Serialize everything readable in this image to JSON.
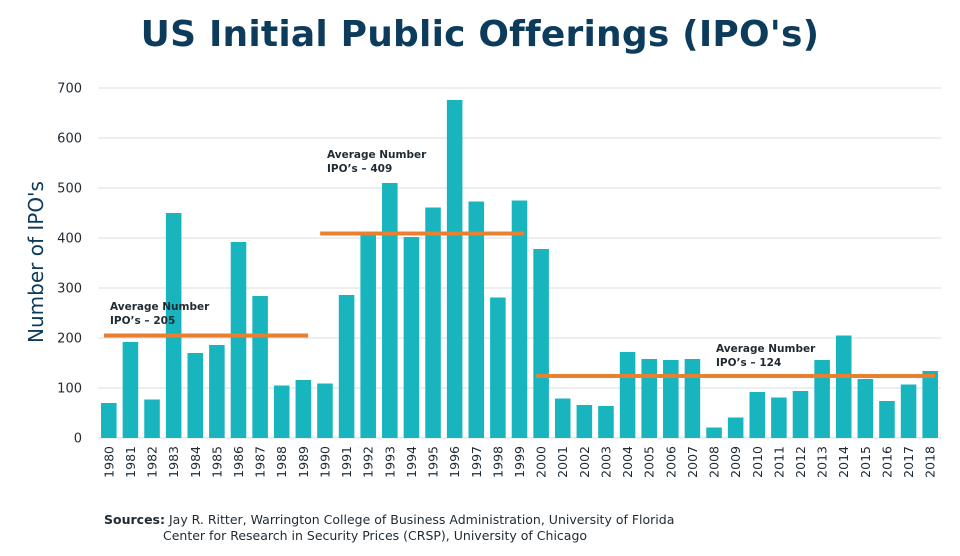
{
  "chart_data": {
    "type": "bar",
    "title": "US Initial Public Offerings (IPO's)",
    "ylabel": "Number of IPO's",
    "xlabel": "",
    "ylim": [
      0,
      700
    ],
    "yticks": [
      0,
      100,
      200,
      300,
      400,
      500,
      600,
      700
    ],
    "grid": true,
    "bar_color": "#19b5bf",
    "avg_line_color": "#e8802f",
    "categories": [
      "1980",
      "1981",
      "1982",
      "1983",
      "1984",
      "1985",
      "1986",
      "1987",
      "1988",
      "1989",
      "1990",
      "1991",
      "1992",
      "1993",
      "1994",
      "1995",
      "1996",
      "1997",
      "1998",
      "1999",
      "2000",
      "2001",
      "2002",
      "2003",
      "2004",
      "2005",
      "2006",
      "2007",
      "2008",
      "2009",
      "2010",
      "2011",
      "2012",
      "2013",
      "2014",
      "2015",
      "2016",
      "2017",
      "2018"
    ],
    "values": [
      70,
      192,
      77,
      450,
      170,
      186,
      392,
      284,
      105,
      116,
      109,
      286,
      408,
      510,
      402,
      461,
      676,
      473,
      281,
      475,
      378,
      79,
      66,
      64,
      172,
      158,
      156,
      158,
      21,
      41,
      92,
      81,
      94,
      156,
      205,
      118,
      74,
      107,
      134
    ],
    "averages": [
      {
        "line1": "Average Number",
        "line2": "IPO’s – 205",
        "value": 205,
        "from": "1980",
        "to": "1989"
      },
      {
        "line1": "Average Number",
        "line2": "IPO’s – 409",
        "value": 409,
        "from": "1990",
        "to": "1999"
      },
      {
        "line1": "Average Number",
        "line2": "IPO’s – 124",
        "value": 124,
        "from": "2000",
        "to": "2018"
      }
    ]
  },
  "sources": {
    "label": "Sources:",
    "line1": "Jay R. Ritter, Warrington College of Business Administration, University of Florida",
    "line2": "Center for Research in Security Prices (CRSP), University of Chicago"
  }
}
